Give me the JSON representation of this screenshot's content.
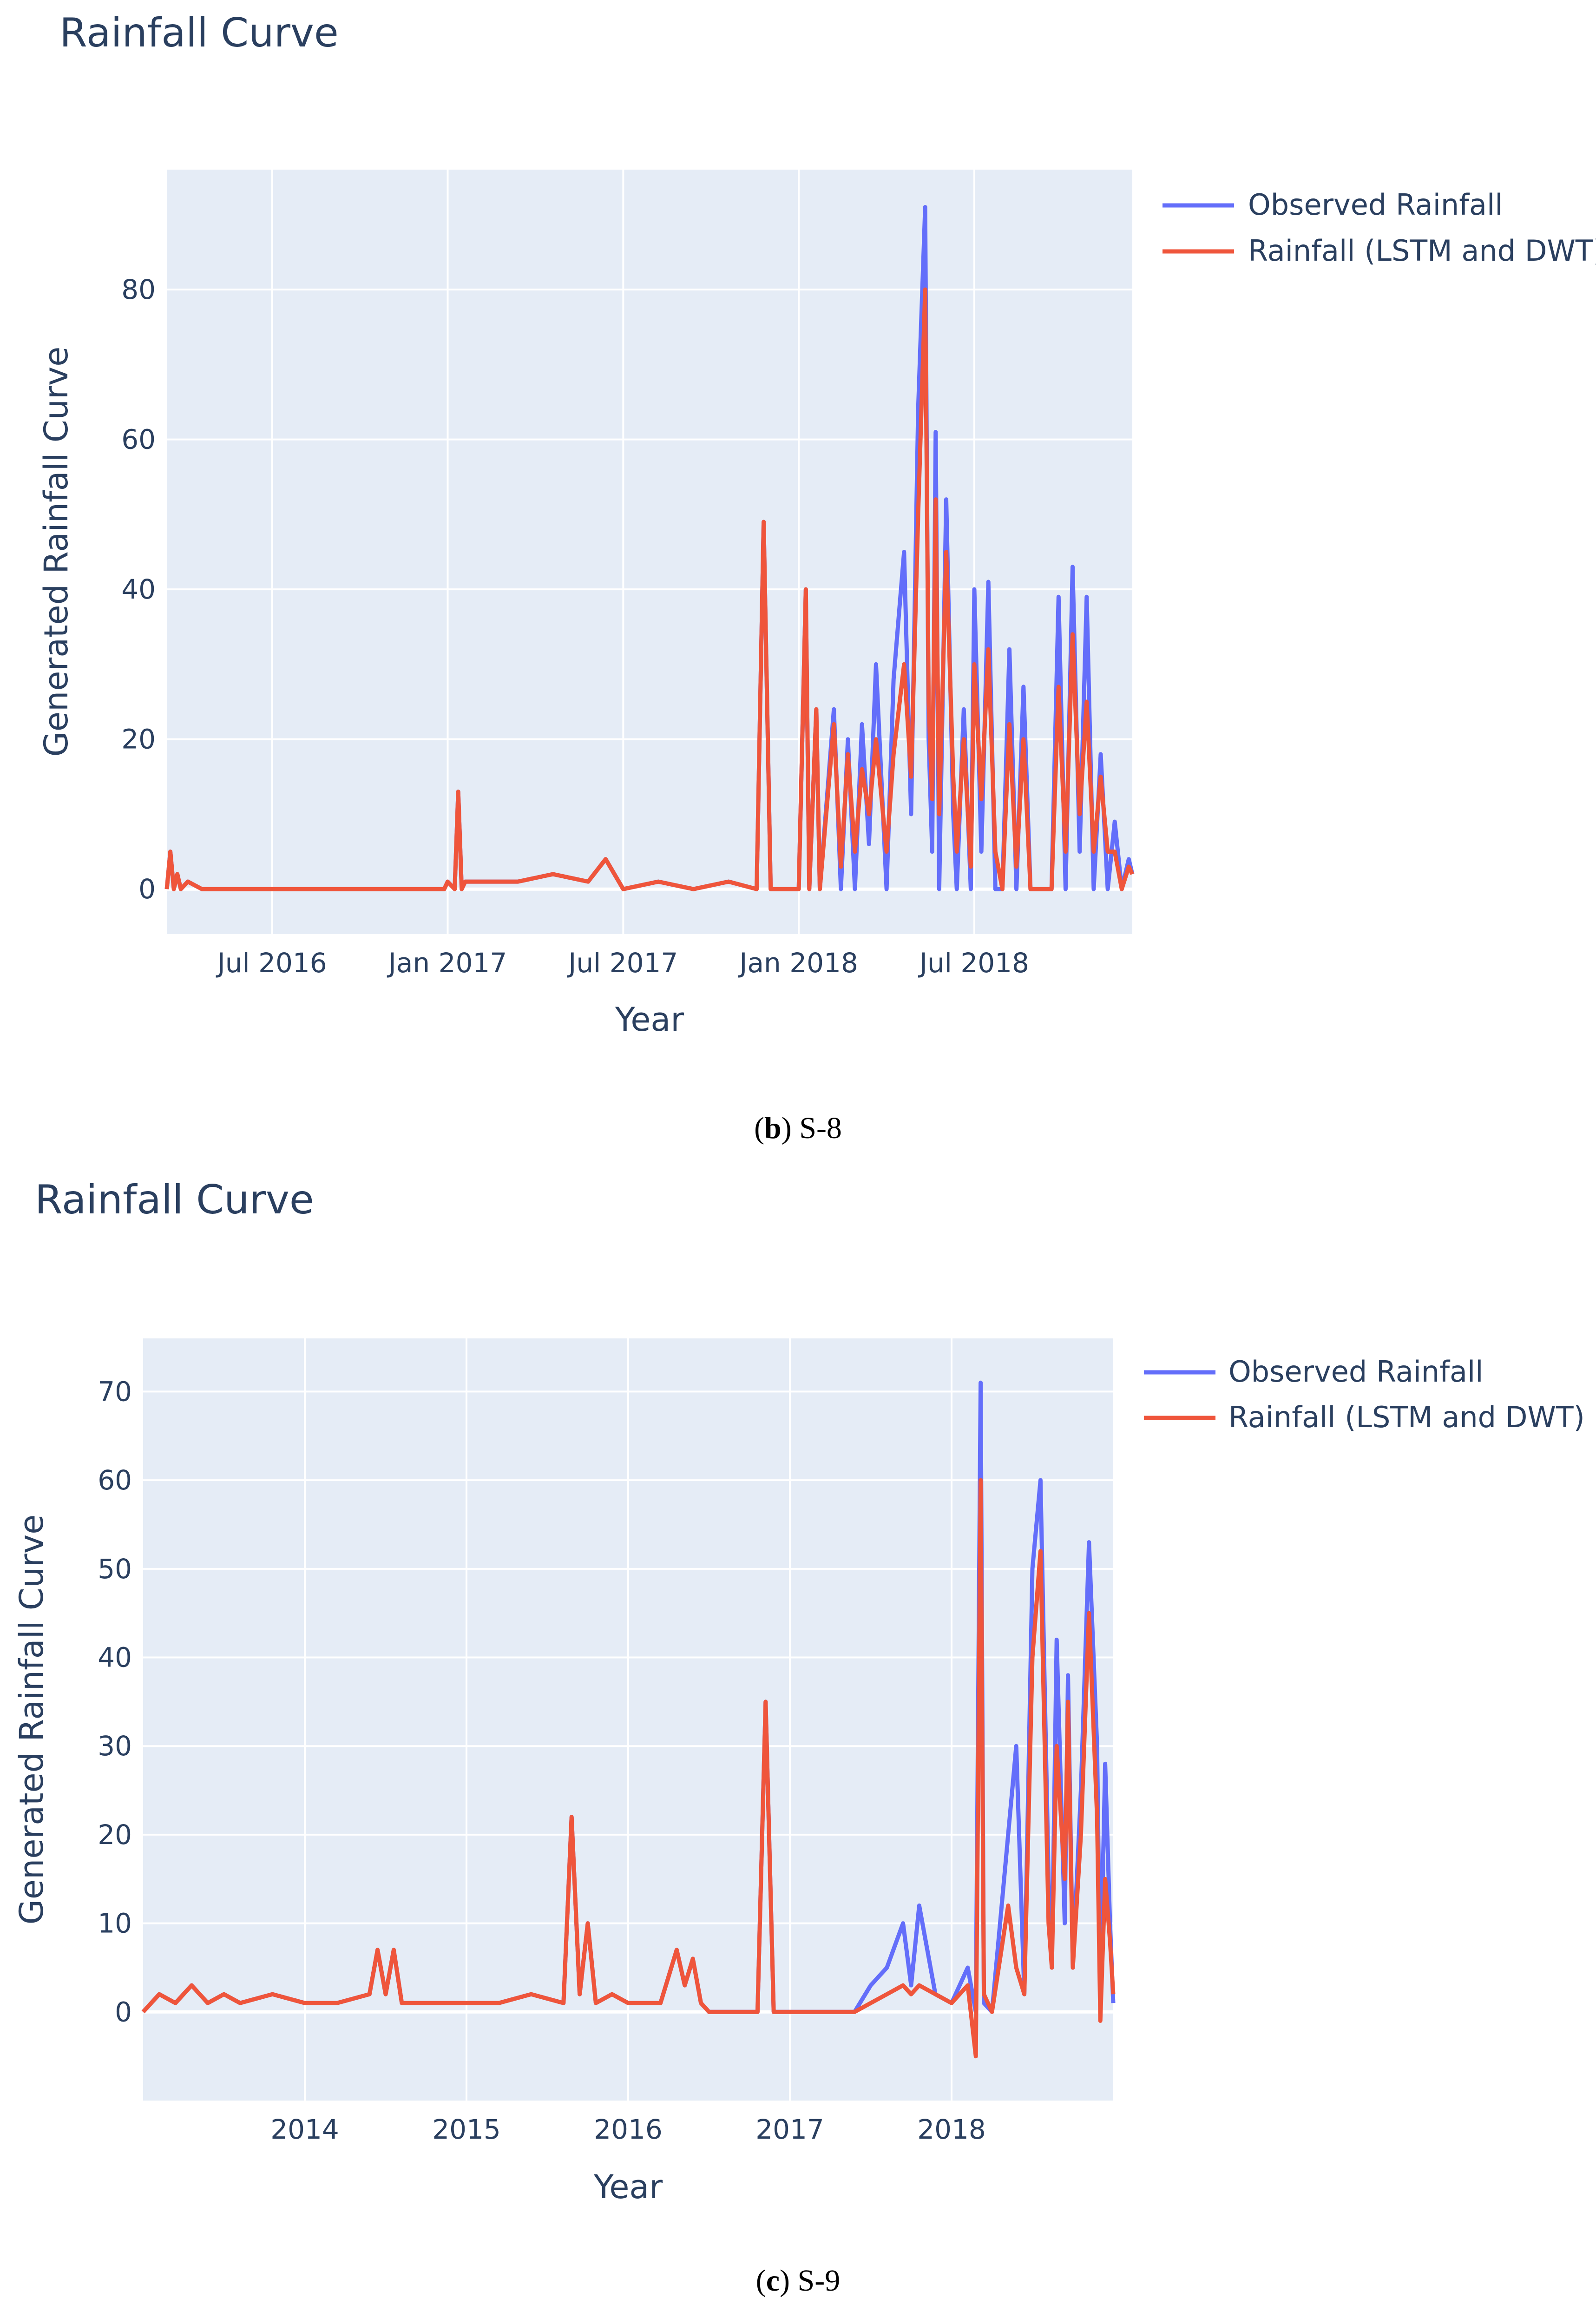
{
  "chart_data": [
    {
      "type": "line",
      "title": "Rainfall Curve",
      "xlabel": "Year",
      "ylabel": "Generated Rainfall Curve",
      "x_ticks": [
        "Jul 2016",
        "Jan 2017",
        "Jul 2017",
        "Jan 2018",
        "Jul 2018"
      ],
      "y_ticks": [
        "0",
        "20",
        "40",
        "60",
        "80"
      ],
      "xlim": [
        2016.2,
        2018.95
      ],
      "ylim": [
        -6,
        96
      ],
      "caption": {
        "letter": "b",
        "text": "S-8"
      },
      "series": [
        {
          "name": "Observed Rainfall",
          "color": "#636efa",
          "x": [
            2016.2,
            2016.21,
            2016.22,
            2016.23,
            2016.24,
            2016.26,
            2016.3,
            2016.5,
            2016.8,
            2016.99,
            2017.0,
            2017.02,
            2017.03,
            2017.04,
            2017.05,
            2017.1,
            2017.2,
            2017.3,
            2017.4,
            2017.45,
            2017.5,
            2017.6,
            2017.7,
            2017.8,
            2017.88,
            2017.9,
            2017.92,
            2017.93,
            2017.94,
            2017.95,
            2018.0,
            2018.02,
            2018.03,
            2018.05,
            2018.06,
            2018.1,
            2018.12,
            2018.14,
            2018.16,
            2018.18,
            2018.2,
            2018.22,
            2018.25,
            2018.27,
            2018.3,
            2018.32,
            2018.34,
            2018.36,
            2018.37,
            2018.38,
            2018.39,
            2018.4,
            2018.42,
            2018.44,
            2018.45,
            2018.47,
            2018.49,
            2018.5,
            2018.52,
            2018.54,
            2018.56,
            2018.58,
            2018.6,
            2018.62,
            2018.64,
            2018.66,
            2018.68,
            2018.7,
            2018.72,
            2018.74,
            2018.76,
            2018.78,
            2018.8,
            2018.82,
            2018.84,
            2018.86,
            2018.88,
            2018.9,
            2018.92,
            2018.94,
            2018.95
          ],
          "y": [
            0,
            5,
            0,
            2,
            0,
            1,
            0,
            0,
            0,
            0,
            1,
            0,
            13,
            0,
            1,
            1,
            1,
            2,
            1,
            4,
            0,
            1,
            0,
            1,
            0,
            49,
            0,
            0,
            0,
            0,
            0,
            40,
            0,
            24,
            0,
            24,
            0,
            20,
            0,
            22,
            6,
            30,
            0,
            28,
            45,
            10,
            64,
            91,
            20,
            5,
            61,
            0,
            52,
            10,
            0,
            24,
            0,
            40,
            5,
            41,
            0,
            0,
            32,
            0,
            27,
            0,
            0,
            0,
            0,
            39,
            0,
            43,
            5,
            39,
            0,
            18,
            0,
            9,
            0,
            4,
            2
          ]
        },
        {
          "name": "Rainfall (LSTM and DWT)",
          "color": "#ef553b",
          "x": [
            2016.2,
            2016.21,
            2016.22,
            2016.23,
            2016.24,
            2016.26,
            2016.3,
            2016.5,
            2016.8,
            2016.99,
            2017.0,
            2017.02,
            2017.03,
            2017.04,
            2017.05,
            2017.1,
            2017.2,
            2017.3,
            2017.4,
            2017.45,
            2017.5,
            2017.6,
            2017.7,
            2017.8,
            2017.88,
            2017.9,
            2017.92,
            2017.93,
            2017.94,
            2017.95,
            2018.0,
            2018.02,
            2018.03,
            2018.05,
            2018.06,
            2018.1,
            2018.12,
            2018.14,
            2018.16,
            2018.18,
            2018.2,
            2018.22,
            2018.25,
            2018.27,
            2018.3,
            2018.32,
            2018.34,
            2018.36,
            2018.37,
            2018.38,
            2018.39,
            2018.4,
            2018.42,
            2018.44,
            2018.45,
            2018.47,
            2018.49,
            2018.5,
            2018.52,
            2018.54,
            2018.56,
            2018.58,
            2018.6,
            2018.62,
            2018.64,
            2018.66,
            2018.68,
            2018.7,
            2018.72,
            2018.74,
            2018.76,
            2018.78,
            2018.8,
            2018.82,
            2018.84,
            2018.86,
            2018.88,
            2018.9,
            2018.92,
            2018.94,
            2018.95
          ],
          "y": [
            0,
            5,
            0,
            2,
            0,
            1,
            0,
            0,
            0,
            0,
            1,
            0,
            13,
            0,
            1,
            1,
            1,
            2,
            1,
            4,
            0,
            1,
            0,
            1,
            0,
            49,
            0,
            0,
            0,
            0,
            0,
            40,
            0,
            24,
            0,
            22,
            3,
            18,
            5,
            16,
            10,
            20,
            5,
            18,
            30,
            15,
            50,
            80,
            25,
            12,
            52,
            10,
            45,
            15,
            5,
            20,
            3,
            30,
            12,
            32,
            5,
            0,
            22,
            3,
            20,
            0,
            0,
            0,
            0,
            27,
            5,
            34,
            10,
            25,
            5,
            15,
            5,
            5,
            0,
            3,
            2
          ]
        }
      ]
    },
    {
      "type": "line",
      "title": "Rainfall Curve",
      "xlabel": "Year",
      "ylabel": "Generated Rainfall Curve",
      "x_ticks": [
        "2014",
        "2015",
        "2016",
        "2017",
        "2018"
      ],
      "y_ticks": [
        "0",
        "10",
        "20",
        "30",
        "40",
        "50",
        "60",
        "70"
      ],
      "xlim": [
        2013.0,
        2019.0
      ],
      "ylim": [
        -10,
        76
      ],
      "caption": {
        "letter": "c",
        "text": "S-9"
      },
      "series": [
        {
          "name": "Observed Rainfall",
          "color": "#636efa",
          "x": [
            2013.0,
            2013.1,
            2013.2,
            2013.3,
            2013.4,
            2013.5,
            2013.6,
            2013.8,
            2014.0,
            2014.2,
            2014.4,
            2014.45,
            2014.5,
            2014.55,
            2014.6,
            2014.8,
            2015.0,
            2015.2,
            2015.4,
            2015.6,
            2015.65,
            2015.7,
            2015.75,
            2015.8,
            2015.9,
            2016.0,
            2016.2,
            2016.3,
            2016.35,
            2016.4,
            2016.45,
            2016.5,
            2016.6,
            2016.8,
            2016.85,
            2016.9,
            2017.0,
            2017.2,
            2017.4,
            2017.5,
            2017.6,
            2017.7,
            2017.75,
            2017.8,
            2017.9,
            2018.0,
            2018.1,
            2018.15,
            2018.18,
            2018.2,
            2018.25,
            2018.35,
            2018.4,
            2018.45,
            2018.5,
            2018.55,
            2018.6,
            2018.62,
            2018.65,
            2018.7,
            2018.72,
            2018.75,
            2018.8,
            2018.85,
            2018.9,
            2018.92,
            2018.95,
            2018.98,
            2019.0
          ],
          "y": [
            0,
            2,
            1,
            3,
            1,
            2,
            1,
            2,
            1,
            1,
            2,
            7,
            2,
            7,
            1,
            1,
            1,
            1,
            2,
            1,
            22,
            2,
            10,
            1,
            2,
            1,
            1,
            7,
            3,
            6,
            1,
            0,
            0,
            0,
            35,
            0,
            0,
            0,
            0,
            3,
            5,
            10,
            3,
            12,
            2,
            1,
            5,
            0,
            71,
            1,
            0,
            20,
            30,
            2,
            50,
            60,
            15,
            5,
            42,
            10,
            38,
            5,
            25,
            53,
            30,
            2,
            28,
            10,
            1
          ]
        },
        {
          "name": "Rainfall (LSTM and DWT)",
          "color": "#ef553b",
          "x": [
            2013.0,
            2013.1,
            2013.2,
            2013.3,
            2013.4,
            2013.5,
            2013.6,
            2013.8,
            2014.0,
            2014.2,
            2014.4,
            2014.45,
            2014.5,
            2014.55,
            2014.6,
            2014.8,
            2015.0,
            2015.2,
            2015.4,
            2015.6,
            2015.65,
            2015.7,
            2015.75,
            2015.8,
            2015.9,
            2016.0,
            2016.2,
            2016.3,
            2016.35,
            2016.4,
            2016.45,
            2016.5,
            2016.6,
            2016.8,
            2016.85,
            2016.9,
            2017.0,
            2017.2,
            2017.4,
            2017.5,
            2017.6,
            2017.7,
            2017.75,
            2017.8,
            2017.9,
            2018.0,
            2018.1,
            2018.15,
            2018.18,
            2018.2,
            2018.25,
            2018.35,
            2018.4,
            2018.45,
            2018.5,
            2018.55,
            2018.6,
            2018.62,
            2018.65,
            2018.7,
            2018.72,
            2018.75,
            2018.8,
            2018.85,
            2018.9,
            2018.92,
            2018.95,
            2018.98,
            2019.0
          ],
          "y": [
            0,
            2,
            1,
            3,
            1,
            2,
            1,
            2,
            1,
            1,
            2,
            7,
            2,
            7,
            1,
            1,
            1,
            1,
            2,
            1,
            22,
            2,
            10,
            1,
            2,
            1,
            1,
            7,
            3,
            6,
            1,
            0,
            0,
            0,
            35,
            0,
            0,
            0,
            0,
            1,
            2,
            3,
            2,
            3,
            2,
            1,
            3,
            -5,
            60,
            2,
            0,
            12,
            5,
            2,
            40,
            52,
            10,
            5,
            30,
            15,
            35,
            5,
            20,
            45,
            22,
            -1,
            15,
            8,
            2
          ]
        }
      ]
    }
  ]
}
